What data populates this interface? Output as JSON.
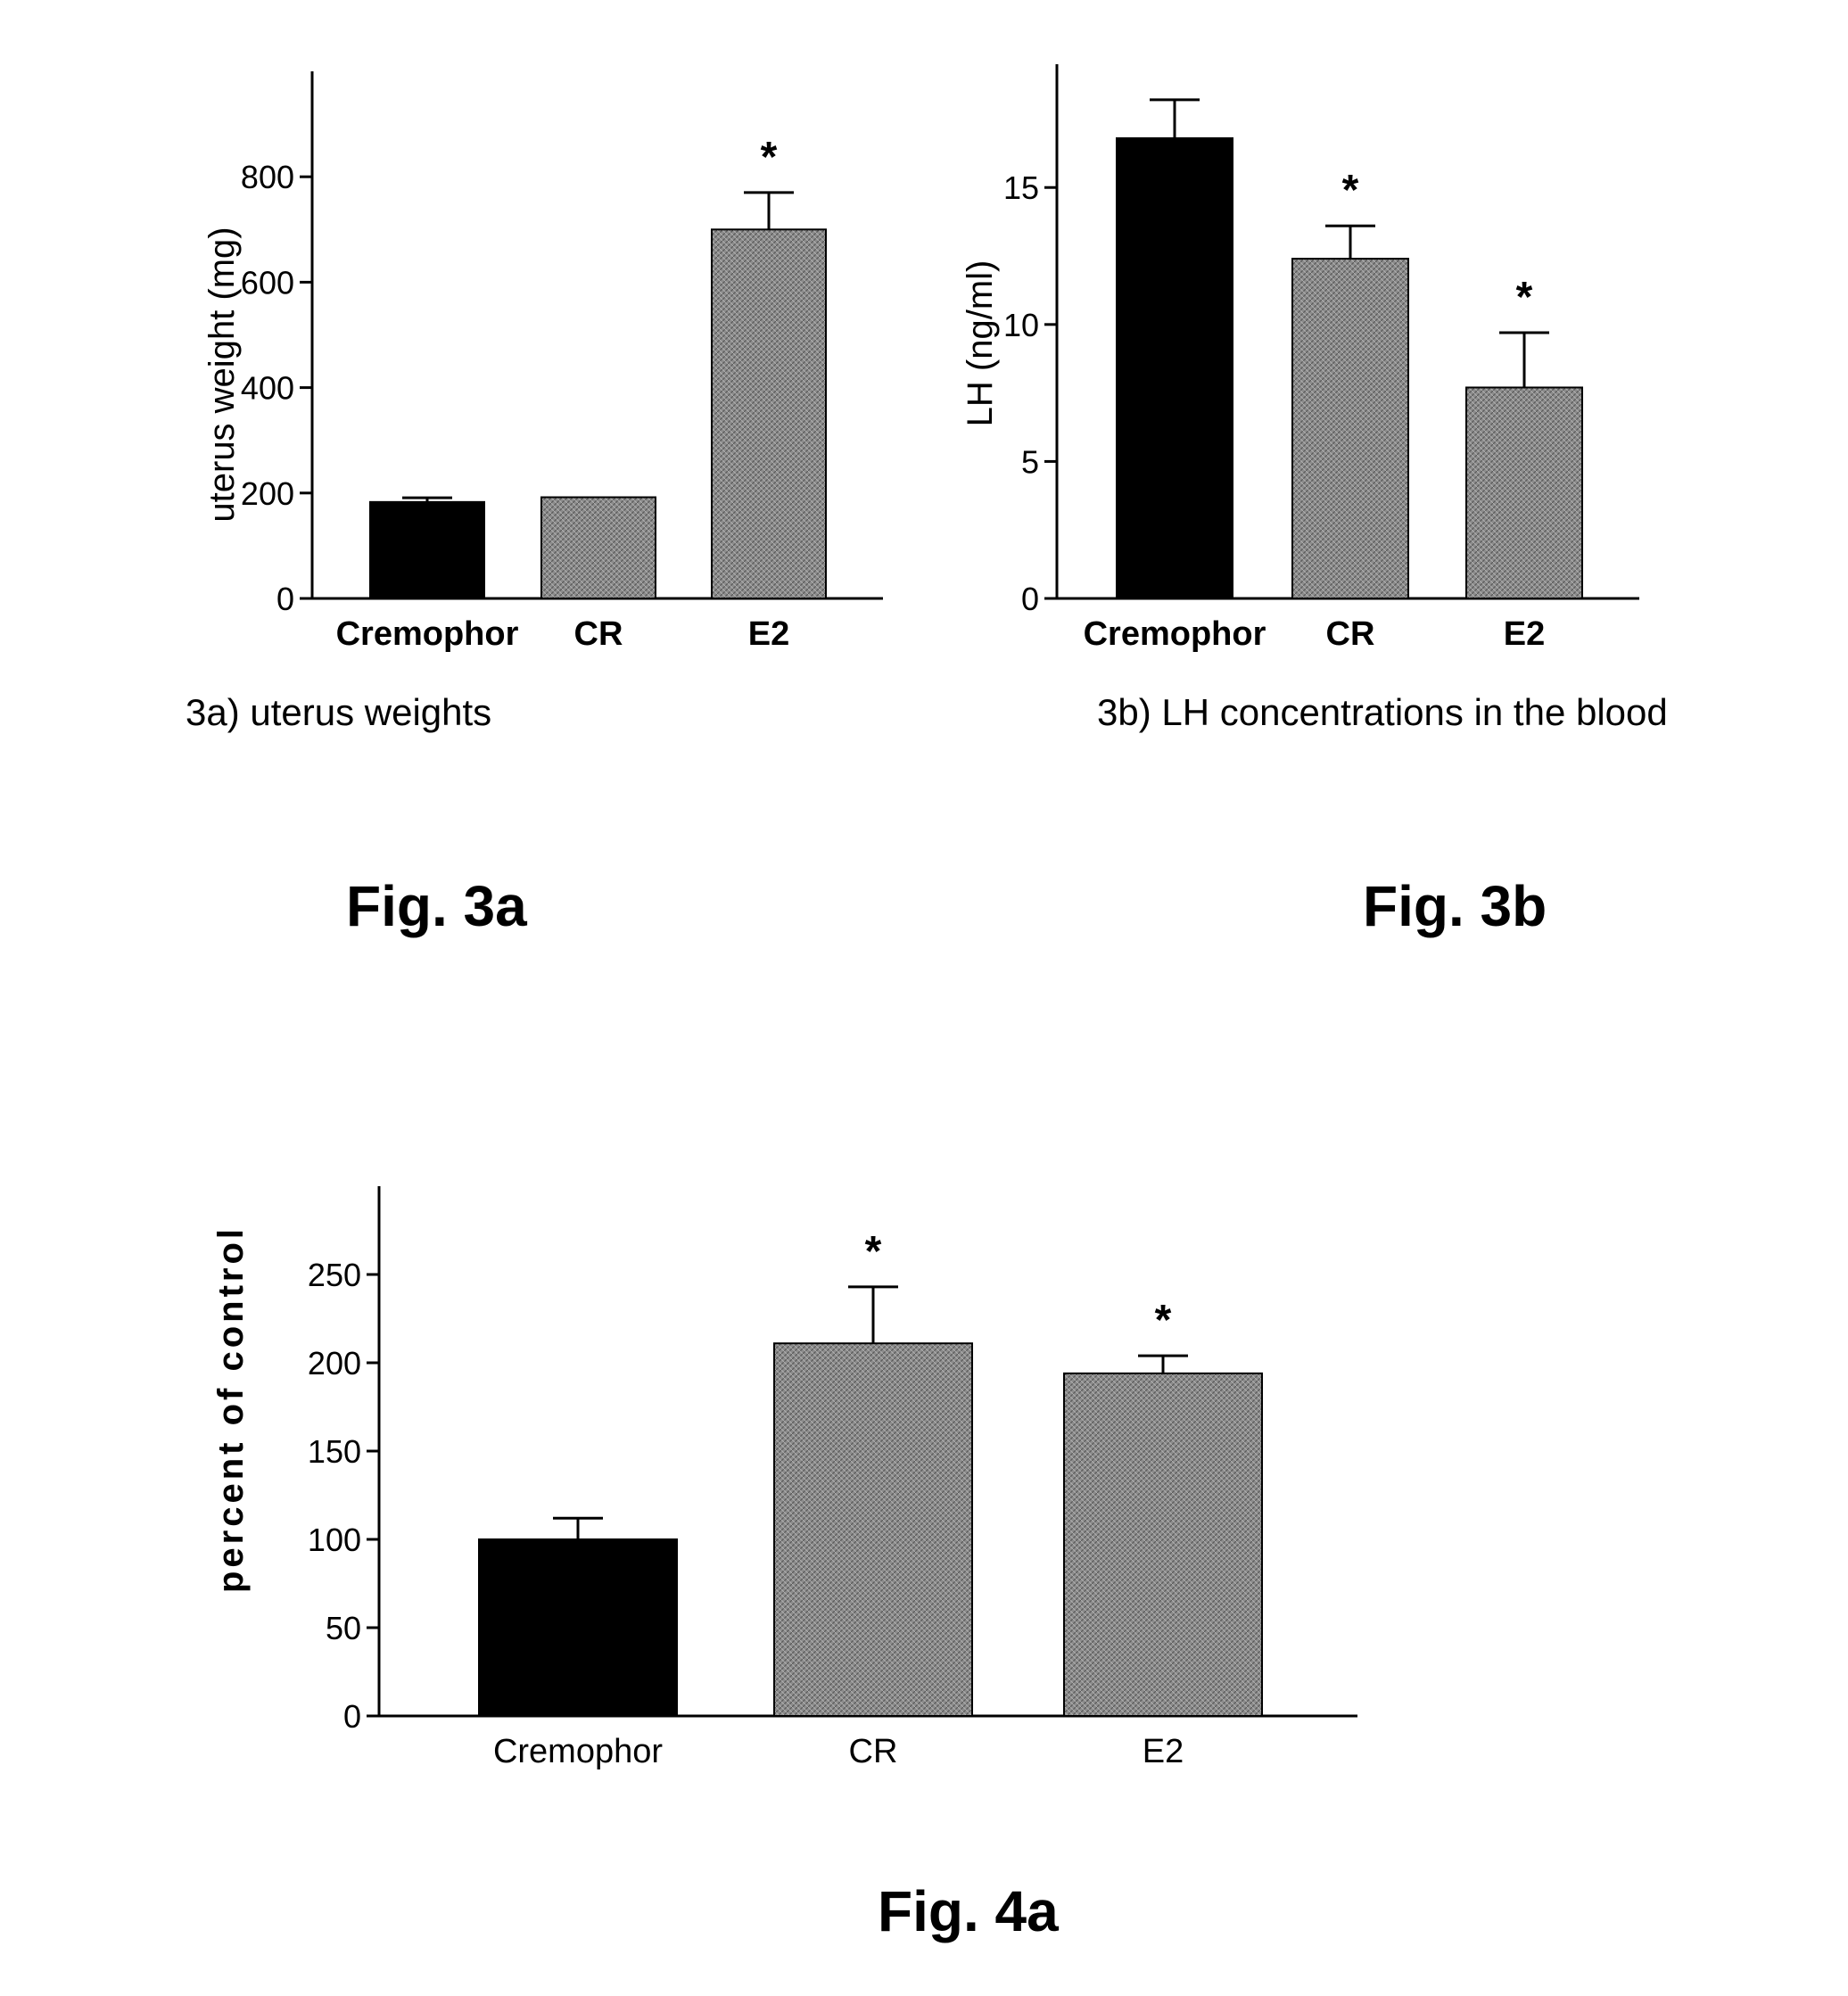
{
  "colors": {
    "control": "#000000",
    "treated": "#8c8c8c",
    "axis": "#000000"
  },
  "chart_data": [
    {
      "type": "bar",
      "ylabel": "uterus weight (mg)",
      "caption": "3a) uterus weights",
      "figure_label": "Fig. 3a",
      "categories": [
        "Cremophor",
        "CR",
        "E2"
      ],
      "values": [
        183,
        192,
        700
      ],
      "errors": [
        8,
        0,
        70
      ],
      "significant": [
        "",
        "",
        "*"
      ],
      "yticks": [
        "0",
        "200",
        "400",
        "600",
        "800"
      ],
      "ylim": [
        0,
        1000
      ],
      "bar_colors": [
        "control",
        "treated",
        "treated"
      ],
      "bold_categories": true
    },
    {
      "type": "bar",
      "ylabel": "LH (ng/ml)",
      "caption": "3b) LH concentrations in the blood",
      "figure_label": "Fig. 3b",
      "categories": [
        "Cremophor",
        "CR",
        "E2"
      ],
      "values": [
        16.8,
        12.4,
        7.7
      ],
      "errors": [
        1.4,
        1.2,
        2.0
      ],
      "significant": [
        "",
        "*",
        "*"
      ],
      "yticks": [
        "0",
        "5",
        "10",
        "15"
      ],
      "ylim": [
        0,
        19.5
      ],
      "bar_colors": [
        "control",
        "treated",
        "treated"
      ],
      "bold_categories": true
    },
    {
      "type": "bar",
      "ylabel": "percent of control",
      "figure_label": "Fig. 4a",
      "categories": [
        "Cremophor",
        "CR",
        "E2"
      ],
      "values": [
        100,
        211,
        194
      ],
      "errors": [
        12,
        32,
        10
      ],
      "significant": [
        "",
        "*",
        "*"
      ],
      "yticks": [
        "0",
        "50",
        "100",
        "150",
        "200",
        "250"
      ],
      "ylim": [
        0,
        300
      ],
      "bar_colors": [
        "control",
        "treated",
        "treated"
      ],
      "bold_categories": false
    }
  ]
}
